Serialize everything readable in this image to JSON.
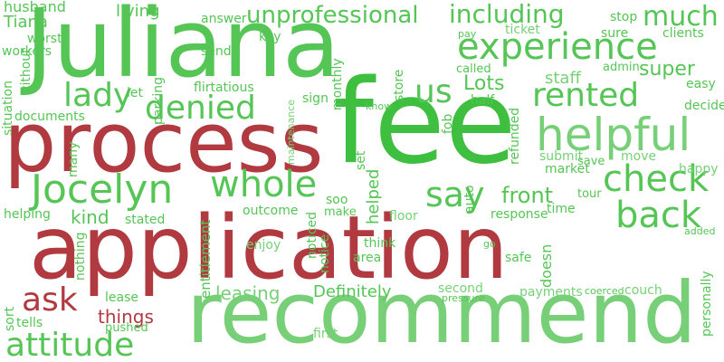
{
  "colors": {
    "green_dark": "#3fbf3f",
    "green": "#55c555",
    "green_light": "#77d077",
    "red": "#b03a3f",
    "background": "#ffffff"
  },
  "words": [
    {
      "text": "Juliana",
      "color": "green"
    },
    {
      "text": "fee",
      "color": "green_dark"
    },
    {
      "text": "process",
      "color": "red"
    },
    {
      "text": "application",
      "color": "red"
    },
    {
      "text": "recommend",
      "color": "green_light"
    },
    {
      "text": "experience",
      "color": "green"
    },
    {
      "text": "helpful",
      "color": "green_light"
    },
    {
      "text": "rented",
      "color": "green"
    },
    {
      "text": "check",
      "color": "green"
    },
    {
      "text": "back",
      "color": "green"
    },
    {
      "text": "Jocelyn",
      "color": "green"
    },
    {
      "text": "whole",
      "color": "green"
    },
    {
      "text": "say",
      "color": "green"
    },
    {
      "text": "denied",
      "color": "green"
    },
    {
      "text": "lady",
      "color": "green"
    },
    {
      "text": "us",
      "color": "green"
    },
    {
      "text": "ask",
      "color": "red"
    },
    {
      "text": "attitude",
      "color": "green"
    },
    {
      "text": "much",
      "color": "green"
    },
    {
      "text": "including",
      "color": "green"
    },
    {
      "text": "unprofessional",
      "color": "green"
    },
    {
      "text": "super",
      "color": "green"
    },
    {
      "text": "Lots",
      "color": "green"
    },
    {
      "text": "staff",
      "color": "green_light"
    },
    {
      "text": "front",
      "color": "green"
    },
    {
      "text": "Definitely",
      "color": "green"
    },
    {
      "text": "leasing",
      "color": "green_light"
    },
    {
      "text": "things",
      "color": "red"
    },
    {
      "text": "kind",
      "color": "green"
    },
    {
      "text": "Tiana",
      "color": "green"
    },
    {
      "text": "husband",
      "color": "green"
    },
    {
      "text": "worst",
      "color": "green"
    },
    {
      "text": "workers",
      "color": "green"
    },
    {
      "text": "living",
      "color": "green"
    },
    {
      "text": "answer",
      "color": "green"
    },
    {
      "text": "key",
      "color": "green"
    },
    {
      "text": "send",
      "color": "green"
    },
    {
      "text": "flirtatious",
      "color": "green"
    },
    {
      "text": "sign",
      "color": "green"
    },
    {
      "text": "let",
      "color": "green"
    },
    {
      "text": "documents",
      "color": "green"
    },
    {
      "text": "stop",
      "color": "green"
    },
    {
      "text": "pay",
      "color": "green"
    },
    {
      "text": "ticket",
      "color": "green_light"
    },
    {
      "text": "sure",
      "color": "green"
    },
    {
      "text": "clients",
      "color": "green"
    },
    {
      "text": "called",
      "color": "green"
    },
    {
      "text": "admin",
      "color": "green"
    },
    {
      "text": "easy",
      "color": "green"
    },
    {
      "text": "half",
      "color": "green"
    },
    {
      "text": "decided",
      "color": "green"
    },
    {
      "text": "know",
      "color": "green"
    },
    {
      "text": "submit",
      "color": "green_light"
    },
    {
      "text": "save",
      "color": "green"
    },
    {
      "text": "move",
      "color": "green_light"
    },
    {
      "text": "market",
      "color": "green"
    },
    {
      "text": "happy",
      "color": "green_light"
    },
    {
      "text": "tour",
      "color": "green"
    },
    {
      "text": "soo",
      "color": "green"
    },
    {
      "text": "make",
      "color": "green"
    },
    {
      "text": "floor",
      "color": "green_light"
    },
    {
      "text": "response",
      "color": "green"
    },
    {
      "text": "time",
      "color": "green"
    },
    {
      "text": "helping",
      "color": "green"
    },
    {
      "text": "stated",
      "color": "green"
    },
    {
      "text": "outcome",
      "color": "green"
    },
    {
      "text": "added",
      "color": "green"
    },
    {
      "text": "enjoy",
      "color": "green_light"
    },
    {
      "text": "think",
      "color": "green"
    },
    {
      "text": "area",
      "color": "green"
    },
    {
      "text": "safe",
      "color": "green"
    },
    {
      "text": "go",
      "color": "green"
    },
    {
      "text": "second",
      "color": "green_light"
    },
    {
      "text": "pressure",
      "color": "green"
    },
    {
      "text": "payments",
      "color": "green_light"
    },
    {
      "text": "coerced",
      "color": "green"
    },
    {
      "text": "couch",
      "color": "green_light"
    },
    {
      "text": "lease",
      "color": "green"
    },
    {
      "text": "tells",
      "color": "green"
    },
    {
      "text": "pushed",
      "color": "green"
    },
    {
      "text": "first",
      "color": "green_light"
    },
    {
      "text": "sort",
      "color": "green"
    },
    {
      "text": "situation",
      "color": "green"
    },
    {
      "text": "without",
      "color": "green"
    },
    {
      "text": "many",
      "color": "green"
    },
    {
      "text": "nothing",
      "color": "green"
    },
    {
      "text": "entitlement",
      "color": "green"
    },
    {
      "text": "notice",
      "color": "green"
    },
    {
      "text": "noticed",
      "color": "green"
    },
    {
      "text": "helped",
      "color": "green"
    },
    {
      "text": "parking",
      "color": "green"
    },
    {
      "text": "monthly",
      "color": "green"
    },
    {
      "text": "maintenance",
      "color": "green_light"
    },
    {
      "text": "store",
      "color": "green"
    },
    {
      "text": "fob",
      "color": "green"
    },
    {
      "text": "refunded",
      "color": "green"
    },
    {
      "text": "set",
      "color": "green"
    },
    {
      "text": "auto",
      "color": "green"
    },
    {
      "text": "doesn",
      "color": "green"
    },
    {
      "text": "personally",
      "color": "green"
    }
  ]
}
